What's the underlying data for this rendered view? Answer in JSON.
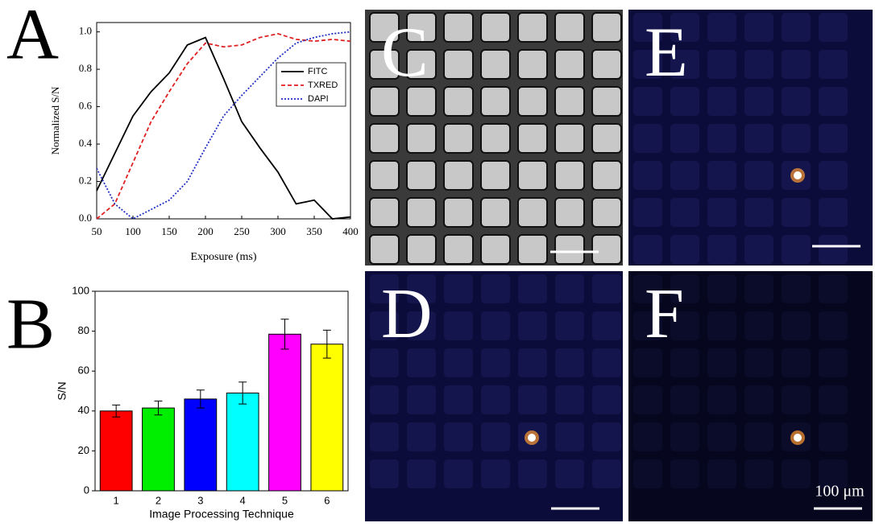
{
  "chart_data": [
    {
      "type": "line",
      "panel": "A",
      "xlabel": "Exposure (ms)",
      "ylabel": "Normalized S/N",
      "x": [
        50,
        75,
        100,
        125,
        150,
        175,
        200,
        225,
        250,
        275,
        300,
        325,
        350,
        375,
        400
      ],
      "series": [
        {
          "name": "FITC",
          "color": "#000000",
          "dash": "",
          "values": [
            0.15,
            0.35,
            0.55,
            0.68,
            0.78,
            0.93,
            0.97,
            0.75,
            0.52,
            0.38,
            0.25,
            0.08,
            0.1,
            0.0,
            0.01
          ]
        },
        {
          "name": "TXRED",
          "color": "#e02020",
          "dash": "5,3",
          "values": [
            0.0,
            0.08,
            0.3,
            0.52,
            0.68,
            0.83,
            0.94,
            0.92,
            0.93,
            0.97,
            0.99,
            0.96,
            0.95,
            0.96,
            0.95
          ]
        },
        {
          "name": "DAPI",
          "color": "#2030c0",
          "dash": "2,2",
          "values": [
            0.27,
            0.08,
            0.0,
            0.05,
            0.1,
            0.2,
            0.38,
            0.55,
            0.66,
            0.76,
            0.86,
            0.94,
            0.97,
            0.99,
            1.0
          ]
        }
      ],
      "xlim": [
        50,
        400
      ],
      "ylim": [
        0,
        1.05
      ],
      "xticks": [
        50,
        100,
        150,
        200,
        250,
        300,
        350,
        400
      ],
      "yticks": [
        {
          "value": 0,
          "label": "0.0"
        },
        {
          "value": 0.2,
          "label": "0.2"
        },
        {
          "value": 0.4,
          "label": "0.4"
        },
        {
          "value": 0.6,
          "label": "0.6"
        },
        {
          "value": 0.8,
          "label": "0.8"
        },
        {
          "value": 1,
          "label": "1.0"
        }
      ]
    },
    {
      "type": "bar",
      "panel": "B",
      "xlabel": "Image Processing Technique",
      "ylabel": "S/N",
      "categories": [
        "1",
        "2",
        "3",
        "4",
        "5",
        "6"
      ],
      "values": [
        40,
        41.5,
        46,
        49,
        78.5,
        73.5
      ],
      "errors": [
        3,
        3.5,
        4.5,
        5.5,
        7.5,
        7
      ],
      "colors": [
        "#ff0000",
        "#00ee00",
        "#0000ff",
        "#00ffff",
        "#ff00ff",
        "#ffff00"
      ],
      "ylim": [
        0,
        100
      ],
      "yticks": [
        0,
        20,
        40,
        60,
        80,
        100
      ]
    }
  ],
  "panel_labels": {
    "C": "C",
    "D": "D",
    "E": "E",
    "F": "F"
  },
  "scale_bar_label": "100 μm"
}
